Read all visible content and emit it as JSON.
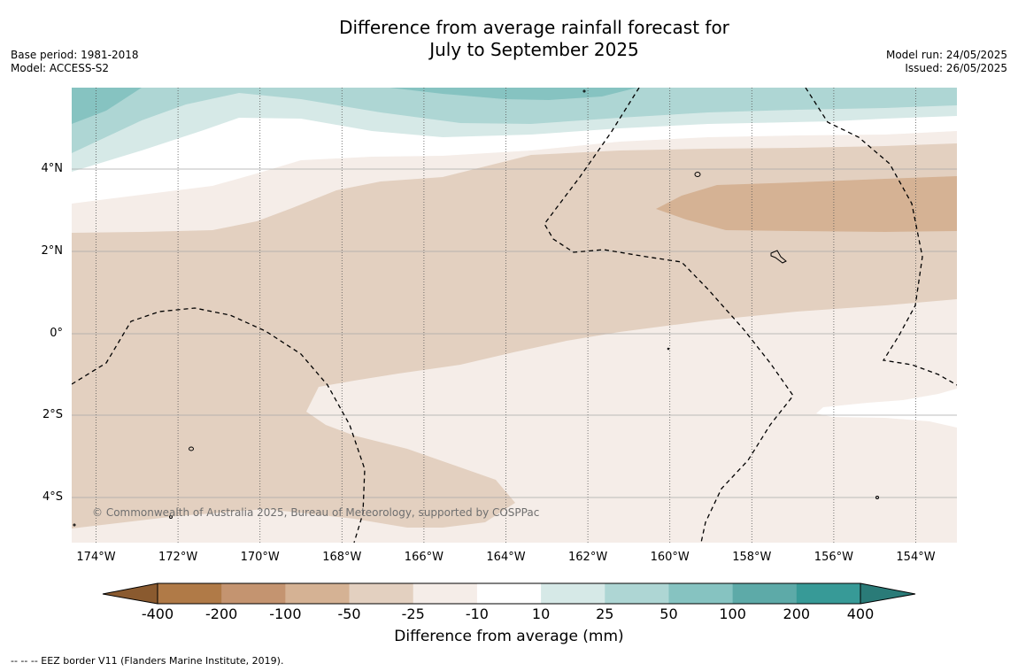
{
  "title_line1": "Difference from average rainfall forecast for",
  "title_line2": "July to September 2025",
  "left_meta": {
    "base_period": "Base period: 1981-2018",
    "model": "Model: ACCESS-S2"
  },
  "right_meta": {
    "model_run": "Model run: 24/05/2025",
    "issued": "Issued: 26/05/2025"
  },
  "copyright": "© Commonwealth of Australia 2025, Bureau of Meteorology, supported by COSPPac",
  "lat_labels": [
    "4°N",
    "2°N",
    "0°",
    "2°S",
    "4°S"
  ],
  "lon_labels": [
    "174°W",
    "172°W",
    "170°W",
    "168°W",
    "166°W",
    "164°W",
    "162°W",
    "160°W",
    "158°W",
    "156°W",
    "154°W"
  ],
  "colorbar": {
    "title": "Difference from average (mm)",
    "ticks": [
      "-400",
      "-200",
      "-100",
      "-50",
      "-25",
      "-10",
      "10",
      "25",
      "50",
      "100",
      "200",
      "400"
    ],
    "colors": [
      "#8a5a2f",
      "#b07a47",
      "#c49470",
      "#d5b294",
      "#e3d0c0",
      "#f5ede8",
      "#ffffff",
      "#d6e9e7",
      "#aed6d4",
      "#86c3c1",
      "#5daaa8",
      "#379a97",
      "#2a7b78"
    ]
  },
  "footer": "-- -- -- EEZ border V11 (Flanders Marine Institute, 2019)."
}
